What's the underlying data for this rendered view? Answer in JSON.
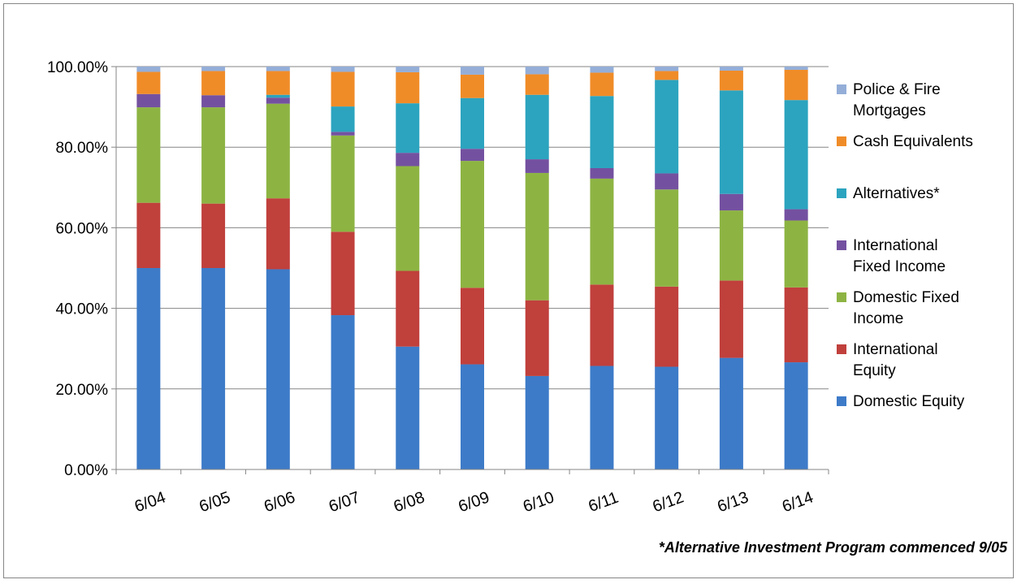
{
  "footnote": "*Alternative Investment Program commenced 9/05",
  "chart_data": {
    "type": "bar",
    "stacked": true,
    "categories": [
      "6/04",
      "6/05",
      "6/06",
      "6/07",
      "6/08",
      "6/09",
      "6/10",
      "6/11",
      "6/12",
      "6/13",
      "6/14"
    ],
    "ylim": [
      0,
      100
    ],
    "yticks": [
      "0.00%",
      "20.00%",
      "40.00%",
      "60.00%",
      "80.00%",
      "100.00%"
    ],
    "grid": true,
    "legend_position": "right",
    "series": [
      {
        "name": "Domestic Equity",
        "label_lines": [
          "Domestic Equity"
        ],
        "color": "#3D7BC8",
        "values": [
          50.0,
          50.0,
          49.7,
          38.3,
          30.5,
          26.1,
          23.2,
          25.7,
          25.5,
          27.7,
          26.6
        ]
      },
      {
        "name": "International Equity",
        "label_lines": [
          "International",
          "Equity"
        ],
        "color": "#C0403C",
        "values": [
          16.2,
          16.0,
          17.6,
          20.7,
          18.8,
          19.0,
          18.8,
          20.2,
          19.9,
          19.2,
          18.6
        ]
      },
      {
        "name": "Domestic Fixed Income",
        "label_lines": [
          "Domestic Fixed",
          "Income"
        ],
        "color": "#8DB443",
        "values": [
          23.7,
          23.9,
          23.5,
          23.9,
          26.0,
          31.5,
          31.6,
          26.3,
          24.1,
          17.4,
          16.6
        ]
      },
      {
        "name": "International Fixed Income",
        "label_lines": [
          "International",
          "Fixed Income"
        ],
        "color": "#7451A0",
        "values": [
          3.3,
          3.0,
          1.5,
          0.9,
          3.3,
          3.0,
          3.4,
          2.6,
          4.0,
          4.1,
          2.8
        ]
      },
      {
        "name": "Alternatives*",
        "label_lines": [
          "Alternatives*"
        ],
        "color": "#2CA4BF",
        "values": [
          0.0,
          0.0,
          0.7,
          6.3,
          12.3,
          12.6,
          16.0,
          17.9,
          23.2,
          25.7,
          27.1
        ]
      },
      {
        "name": "Cash Equivalents",
        "label_lines": [
          "Cash Equivalents"
        ],
        "color": "#F08C28",
        "values": [
          5.5,
          6.0,
          5.9,
          8.6,
          7.7,
          5.8,
          5.1,
          5.8,
          2.2,
          4.9,
          7.5
        ]
      },
      {
        "name": "Police & Fire Mortgages",
        "label_lines": [
          "Police & Fire",
          "Mortgages"
        ],
        "color": "#94AED8",
        "values": [
          1.3,
          1.1,
          1.1,
          1.3,
          1.4,
          2.0,
          1.9,
          1.5,
          1.1,
          1.0,
          0.8
        ]
      }
    ]
  }
}
